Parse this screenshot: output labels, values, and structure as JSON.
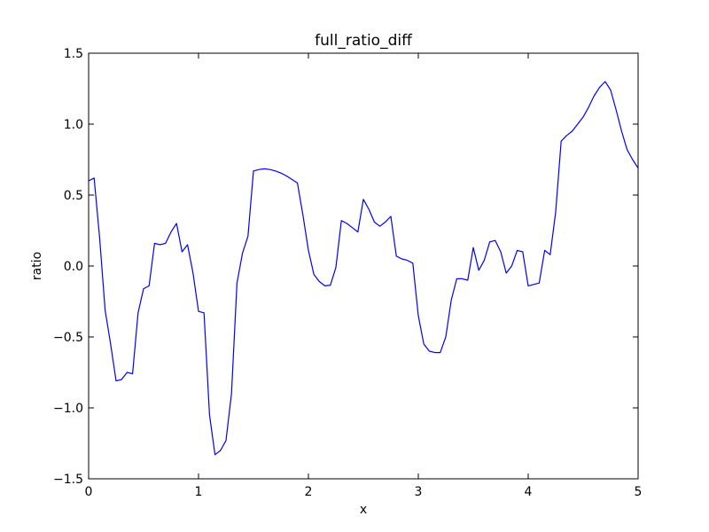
{
  "chart_data": {
    "type": "line",
    "title": "full_ratio_diff",
    "xlabel": "x",
    "ylabel": "ratio",
    "xlim": [
      0,
      5
    ],
    "ylim": [
      -1.5,
      1.5
    ],
    "xticks": [
      0,
      1,
      2,
      3,
      4,
      5
    ],
    "xtick_labels": [
      "0",
      "1",
      "2",
      "3",
      "4",
      "5"
    ],
    "yticks": [
      -1.5,
      -1.0,
      -0.5,
      0.0,
      0.5,
      1.0,
      1.5
    ],
    "ytick_labels": [
      "−1.5",
      "−1.0",
      "−0.5",
      "0.0",
      "0.5",
      "1.0",
      "1.5"
    ],
    "grid": false,
    "series": [
      {
        "color": "#0000ff",
        "x": [
          0.0,
          0.05,
          0.1,
          0.15,
          0.2,
          0.25,
          0.3,
          0.35,
          0.4,
          0.45,
          0.5,
          0.55,
          0.6,
          0.65,
          0.7,
          0.75,
          0.8,
          0.85,
          0.9,
          0.95,
          1.0,
          1.05,
          1.1,
          1.15,
          1.2,
          1.25,
          1.3,
          1.35,
          1.4,
          1.45,
          1.5,
          1.55,
          1.6,
          1.65,
          1.7,
          1.75,
          1.8,
          1.85,
          1.9,
          1.95,
          2.0,
          2.05,
          2.1,
          2.15,
          2.2,
          2.25,
          2.3,
          2.35,
          2.4,
          2.45,
          2.5,
          2.55,
          2.6,
          2.65,
          2.7,
          2.75,
          2.8,
          2.85,
          2.9,
          2.95,
          3.0,
          3.05,
          3.1,
          3.15,
          3.2,
          3.25,
          3.3,
          3.35,
          3.4,
          3.45,
          3.5,
          3.55,
          3.6,
          3.65,
          3.7,
          3.75,
          3.8,
          3.85,
          3.9,
          3.95,
          4.0,
          4.05,
          4.1,
          4.15,
          4.2,
          4.25,
          4.3,
          4.35,
          4.4,
          4.45,
          4.5,
          4.55,
          4.6,
          4.65,
          4.7,
          4.75,
          4.8,
          4.85,
          4.9,
          4.95,
          5.0
        ],
        "y": [
          0.6,
          0.62,
          0.2,
          -0.31,
          -0.55,
          -0.81,
          -0.8,
          -0.75,
          -0.76,
          -0.33,
          -0.16,
          -0.14,
          0.16,
          0.15,
          0.16,
          0.24,
          0.3,
          0.1,
          0.15,
          -0.05,
          -0.32,
          -0.33,
          -1.05,
          -1.33,
          -1.3,
          -1.23,
          -0.9,
          -0.12,
          0.09,
          0.21,
          0.67,
          0.68,
          0.685,
          0.68,
          0.67,
          0.655,
          0.635,
          0.61,
          0.585,
          0.36,
          0.11,
          -0.06,
          -0.11,
          -0.14,
          -0.135,
          -0.01,
          0.32,
          0.3,
          0.27,
          0.24,
          0.47,
          0.4,
          0.31,
          0.28,
          0.31,
          0.35,
          0.07,
          0.05,
          0.04,
          0.02,
          -0.35,
          -0.55,
          -0.6,
          -0.61,
          -0.61,
          -0.5,
          -0.24,
          -0.09,
          -0.09,
          -0.1,
          0.13,
          -0.03,
          0.04,
          0.17,
          0.18,
          0.1,
          -0.05,
          0.0,
          0.11,
          0.1,
          -0.14,
          -0.13,
          -0.12,
          0.11,
          0.08,
          0.38,
          0.88,
          0.92,
          0.95,
          1.0,
          1.05,
          1.12,
          1.2,
          1.26,
          1.3,
          1.24,
          1.1,
          0.95,
          0.82,
          0.75,
          0.69
        ]
      }
    ]
  }
}
